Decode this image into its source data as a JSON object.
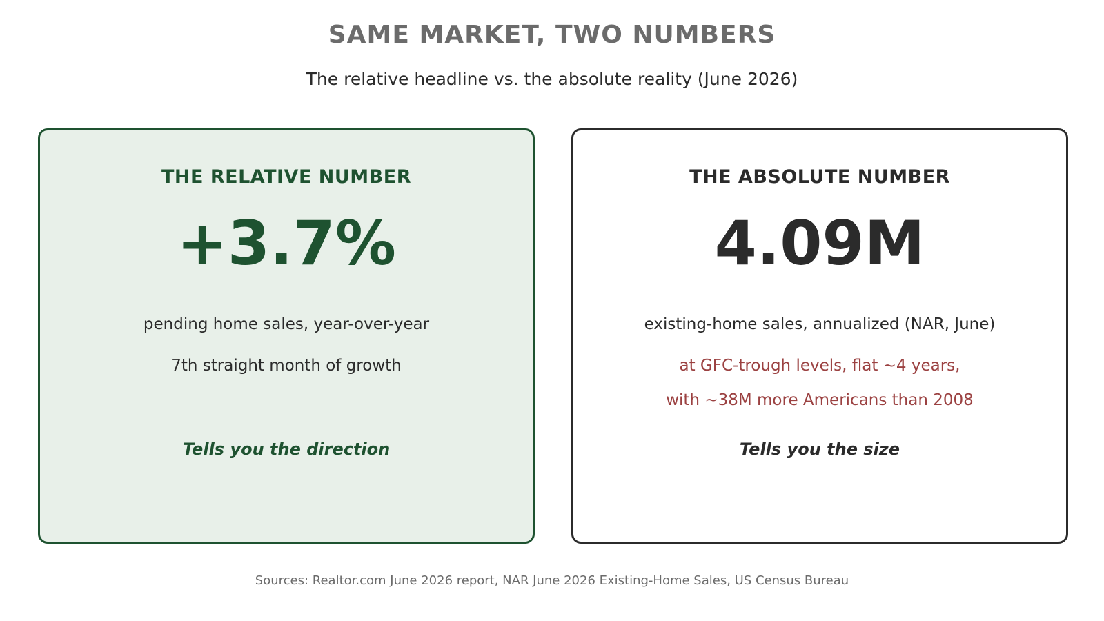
{
  "title": "SAME MARKET, TWO NUMBERS",
  "subtitle": "The relative headline vs. the absolute reality (June 2026)",
  "colors": {
    "green": "#1e5230",
    "green_bg": "#e8f0e9",
    "dark": "#2b2b2b",
    "red": "#9b4141",
    "gray": "#6b6b6b"
  },
  "cards": [
    {
      "heading": "THE RELATIVE NUMBER",
      "value": "+3.7%",
      "description": "pending home sales, year-over-year",
      "notes": [
        "7th straight month of growth"
      ],
      "tagline": "Tells you the direction"
    },
    {
      "heading": "THE ABSOLUTE NUMBER",
      "value": "4.09M",
      "description": "existing-home sales, annualized (NAR, June)",
      "notes": [
        "at GFC-trough levels, flat ~4 years,",
        "with ~38M more Americans than 2008"
      ],
      "tagline": "Tells you the size"
    }
  ],
  "sources": "Sources: Realtor.com June 2026 report, NAR June 2026 Existing-Home Sales, US Census Bureau"
}
